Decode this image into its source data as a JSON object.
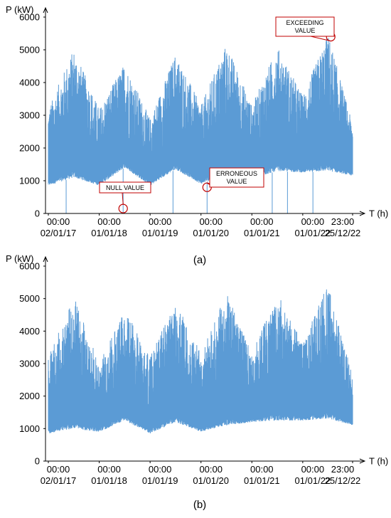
{
  "chart_data": [
    {
      "type": "line",
      "panel_label": "(a)",
      "ylabel": "P (kW)",
      "xlabel": "T (h)",
      "ylim": [
        0,
        6000
      ],
      "yticks": [
        0,
        1000,
        2000,
        3000,
        4000,
        5000,
        6000
      ],
      "xtick_labels": [
        [
          "00:00",
          "02/01/17"
        ],
        [
          "00:00",
          "01/01/18"
        ],
        [
          "00:00",
          "01/01/19"
        ],
        [
          "00:00",
          "01/01/20"
        ],
        [
          "00:00",
          "01/01/21"
        ],
        [
          "00:00",
          "01/01/22"
        ],
        [
          "23:00",
          "25/12/22"
        ]
      ],
      "x_range": [
        "02/01/17 00:00",
        "25/12/22 23:00"
      ],
      "series": [
        {
          "values": {
            "years": [
              0,
              0.5,
              1,
              1.5,
              2,
              2.5,
              3,
              3.5,
              4,
              4.5,
              5,
              5.5,
              5.98
            ],
            "max": [
              3200,
              5050,
              3200,
              4600,
              2900,
              4900,
              3300,
              5200,
              3300,
              5100,
              3600,
              5500,
              2700
            ],
            "min": [
              850,
              1100,
              850,
              1400,
              850,
              1350,
              900,
              1200,
              1050,
              1300,
              1250,
              1300,
              1150
            ]
          }
        }
      ],
      "annotations": [
        {
          "text": [
            "NULL VALUE"
          ],
          "value": 150
        },
        {
          "text": [
            "ERRONEOUS",
            "VALUE"
          ],
          "value": 800
        },
        {
          "text": [
            "EXCEEDING",
            "VALUE"
          ],
          "value": 5400
        }
      ],
      "colors": {
        "series": "#5b9bd5",
        "annotation": "#c00000"
      }
    },
    {
      "type": "line",
      "panel_label": "(b)",
      "ylabel": "P (kW)",
      "xlabel": "T (h)",
      "ylim": [
        0,
        6000
      ],
      "yticks": [
        0,
        1000,
        2000,
        3000,
        4000,
        5000,
        6000
      ],
      "xtick_labels": [
        [
          "00:00",
          "02/01/17"
        ],
        [
          "00:00",
          "01/01/18"
        ],
        [
          "00:00",
          "01/01/19"
        ],
        [
          "00:00",
          "01/01/20"
        ],
        [
          "00:00",
          "01/01/21"
        ],
        [
          "00:00",
          "01/01/22"
        ],
        [
          "23:00",
          "25/12/22"
        ]
      ],
      "x_range": [
        "02/01/17 00:00",
        "25/12/22 23:00"
      ],
      "series": [
        {
          "values": {
            "years": [
              0,
              0.5,
              1,
              1.5,
              2,
              2.5,
              3,
              3.5,
              4,
              4.5,
              5,
              5.5,
              5.98
            ],
            "max": [
              3200,
              5100,
              3000,
              4700,
              3200,
              5000,
              3300,
              5200,
              3300,
              5200,
              3600,
              5500,
              2600
            ],
            "min": [
              850,
              1000,
              900,
              1250,
              850,
              1200,
              900,
              1100,
              1200,
              1250,
              1250,
              1300,
              1100
            ]
          }
        }
      ],
      "colors": {
        "series": "#5b9bd5"
      }
    }
  ]
}
